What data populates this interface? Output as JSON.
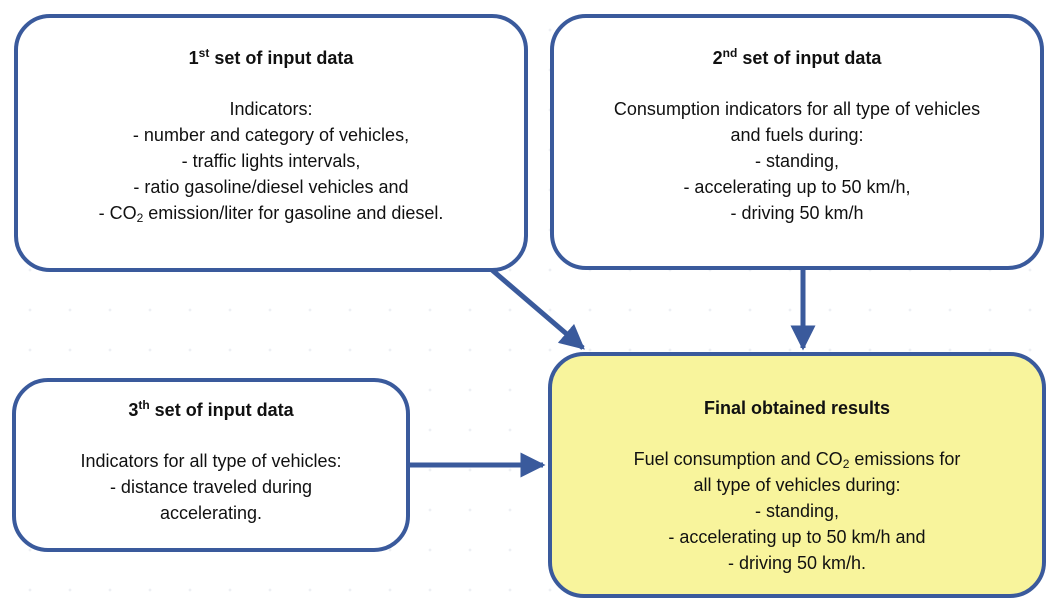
{
  "nodes": [
    {
      "title": [
        "1",
        {
          "sup": "st"
        },
        " set of input data"
      ],
      "lines": [
        [
          "Indicators:"
        ],
        [
          "- number and category of vehicles,"
        ],
        [
          "- traffic lights intervals,"
        ],
        [
          "- ratio gasoline/diesel vehicles and"
        ],
        [
          "- CO",
          {
            "sub": "2"
          },
          " emission/liter for gasoline and diesel."
        ]
      ]
    },
    {
      "title": [
        "2",
        {
          "sup": "nd"
        },
        " set of input data"
      ],
      "lines": [
        [
          "Consumption indicators for all type of vehicles"
        ],
        [
          "and fuels during:"
        ],
        [
          "- standing,"
        ],
        [
          "- accelerating up to 50 km/h,"
        ],
        [
          "- driving 50 km/h"
        ]
      ]
    },
    {
      "title": [
        "3",
        {
          "sup": "th"
        },
        " set of input data"
      ],
      "lines": [
        [
          "Indicators for all type of vehicles:"
        ],
        [
          "- distance traveled during"
        ],
        [
          "accelerating."
        ]
      ]
    },
    {
      "title": [
        "Final obtained results"
      ],
      "lines": [
        [
          "Fuel consumption and CO",
          {
            "sub": "2"
          },
          " emissions for"
        ],
        [
          "all type of vehicles during:"
        ],
        [
          "- standing,"
        ],
        [
          "- accelerating up to 50 km/h and"
        ],
        [
          "- driving 50 km/h."
        ]
      ]
    }
  ]
}
